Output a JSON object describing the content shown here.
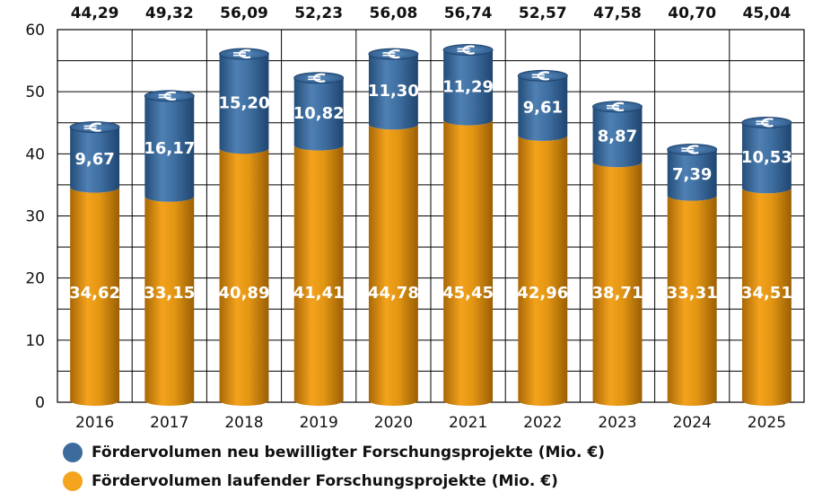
{
  "chart_data": {
    "type": "bar",
    "stacked": true,
    "categories": [
      "2016",
      "2017",
      "2018",
      "2019",
      "2020",
      "2021",
      "2022",
      "2023",
      "2024",
      "2025"
    ],
    "series": [
      {
        "name": "Fördervolumen laufender Forschungsprojekte (Mio. €)",
        "color": "#d58f12",
        "values": [
          34.62,
          33.15,
          40.89,
          41.41,
          44.78,
          45.45,
          42.96,
          38.71,
          33.31,
          34.51
        ],
        "labels": [
          "34,62",
          "33,15",
          "40,89",
          "41,41",
          "44,78",
          "45,45",
          "42,96",
          "38,71",
          "33,31",
          "34,51"
        ]
      },
      {
        "name": "Fördervolumen neu bewilligter Forschungsprojekte (Mio. €)",
        "color": "#3c6b9c",
        "values": [
          9.67,
          16.17,
          15.2,
          10.82,
          11.3,
          11.29,
          9.61,
          8.87,
          7.39,
          10.53
        ],
        "labels": [
          "9,67",
          "16,17",
          "15,20",
          "10,82",
          "11,30",
          "11,29",
          "9,61",
          "8,87",
          "7,39",
          "10,53"
        ]
      }
    ],
    "totals": [
      44.29,
      49.32,
      56.09,
      52.23,
      56.08,
      56.74,
      52.57,
      47.58,
      40.7,
      45.04
    ],
    "total_labels": [
      "44,29",
      "49,32",
      "56,09",
      "52,23",
      "56,08",
      "56,74",
      "52,57",
      "47,58",
      "40,70",
      "45,04"
    ],
    "y_ticks": [
      "0",
      "10",
      "20",
      "30",
      "40",
      "50",
      "60"
    ],
    "ylim": [
      0,
      60
    ],
    "grid": true,
    "legend_position": "bottom-left",
    "icon": "euro-coin-icon"
  },
  "legend": [
    {
      "label": "Fördervolumen neu bewilligter Forschungsprojekte (Mio. €)",
      "color": "#3c6b9c"
    },
    {
      "label": "Fördervolumen laufender Forschungsprojekte (Mio. €)",
      "color": "#f5a41e"
    }
  ]
}
